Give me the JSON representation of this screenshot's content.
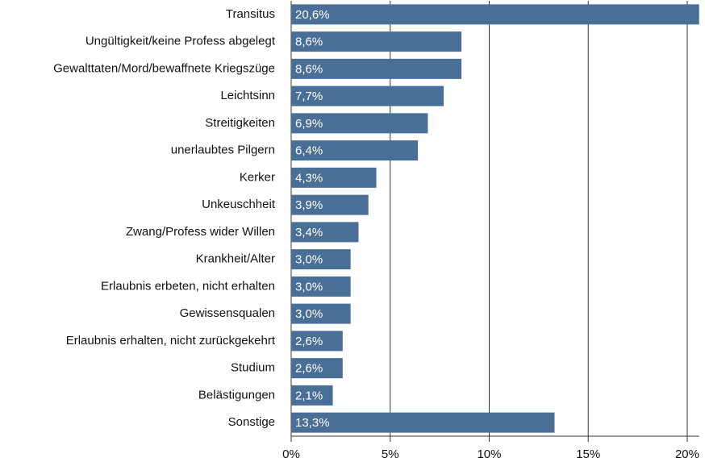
{
  "chart_data": {
    "type": "bar",
    "orientation": "horizontal",
    "categories": [
      "Transitus",
      "Ungültigkeit/keine Profess abgelegt",
      "Gewalttaten/Mord/bewaffnete Kriegszüge",
      "Leichtsinn",
      "Streitigkeiten",
      "unerlaubtes Pilgern",
      "Kerker",
      "Unkeuschheit",
      "Zwang/Profess wider Willen",
      "Krankheit/Alter",
      "Erlaubnis erbeten, nicht erhalten",
      "Gewissensqualen",
      "Erlaubnis erhalten, nicht zurückgekehrt",
      "Studium",
      "Belästigungen",
      "Sonstige"
    ],
    "values": [
      20.6,
      8.6,
      8.6,
      7.7,
      6.9,
      6.4,
      4.3,
      3.9,
      3.4,
      3.0,
      3.0,
      3.0,
      2.6,
      2.6,
      2.1,
      13.3
    ],
    "value_labels": [
      "20,6%",
      "8,6%",
      "8,6%",
      "7,7%",
      "6,9%",
      "6,4%",
      "4,3%",
      "3,9%",
      "3,4%",
      "3,0%",
      "3,0%",
      "3,0%",
      "2,6%",
      "2,6%",
      "2,1%",
      "13,3%"
    ],
    "color": "#4a6f96",
    "xlim": [
      0,
      20.6
    ],
    "xticks": [
      {
        "value": 0,
        "label": "0%"
      },
      {
        "value": 5,
        "label": "5%"
      },
      {
        "value": 10,
        "label": "10%"
      },
      {
        "value": 15,
        "label": "15%"
      },
      {
        "value": 20,
        "label": "20%"
      }
    ],
    "grid": true
  }
}
